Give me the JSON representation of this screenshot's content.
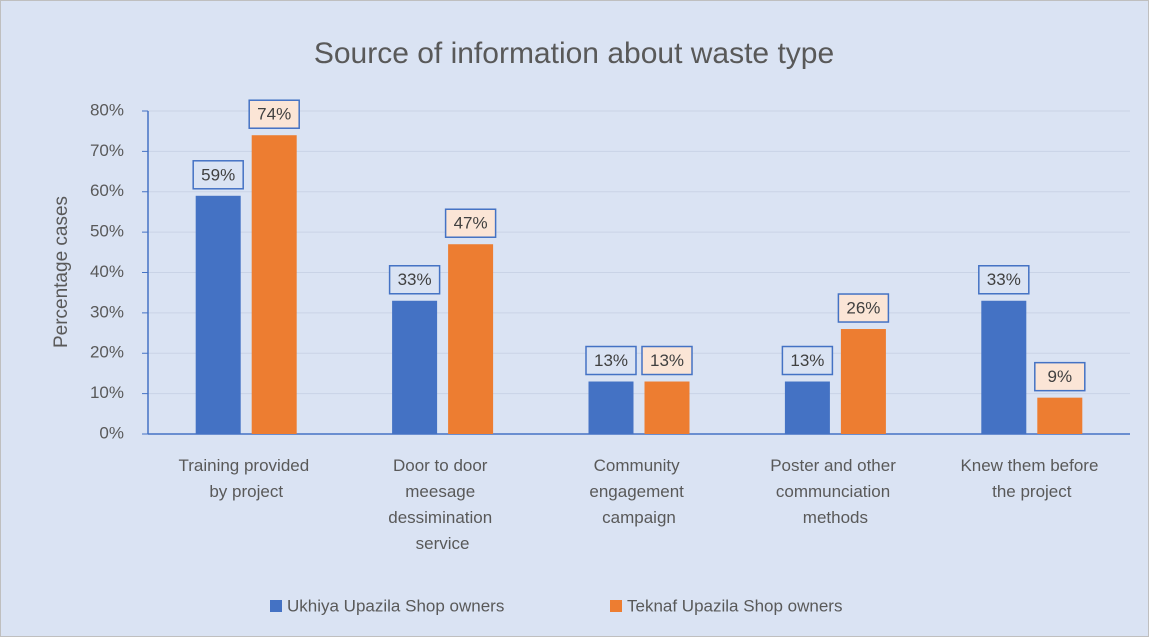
{
  "chart_data": {
    "type": "bar",
    "title": "Source of information about waste type",
    "y_label": "Percentage cases",
    "categories": [
      "Training provided by project",
      "Door to door meesage dessimination service",
      "Community engagement campaign",
      "Poster and other communciation methods",
      "Knew them before the project"
    ],
    "series": [
      {
        "name": "Ukhiya Upazila Shop owners",
        "color": "#4472c4",
        "values": [
          59,
          33,
          13,
          13,
          33
        ],
        "value_labels": [
          "59%",
          "33%",
          "13%",
          "13%",
          "33%"
        ]
      },
      {
        "name": "Teknaf Upazila Shop owners",
        "color": "#ed7d31",
        "values": [
          74,
          47,
          13,
          26,
          9
        ],
        "value_labels": [
          "74%",
          "47%",
          "13%",
          "26%",
          "9%"
        ]
      }
    ],
    "ylim": [
      0,
      80
    ],
    "yticks": [
      {
        "value": 0,
        "label": "0%"
      },
      {
        "value": 10,
        "label": "10%"
      },
      {
        "value": 20,
        "label": "20%"
      },
      {
        "value": 30,
        "label": "30%"
      },
      {
        "value": 40,
        "label": "40%"
      },
      {
        "value": 50,
        "label": "50%"
      },
      {
        "value": 60,
        "label": "60%"
      },
      {
        "value": 70,
        "label": "70%"
      },
      {
        "value": 80,
        "label": "80%"
      }
    ],
    "grid": true,
    "legend": "bottom"
  }
}
